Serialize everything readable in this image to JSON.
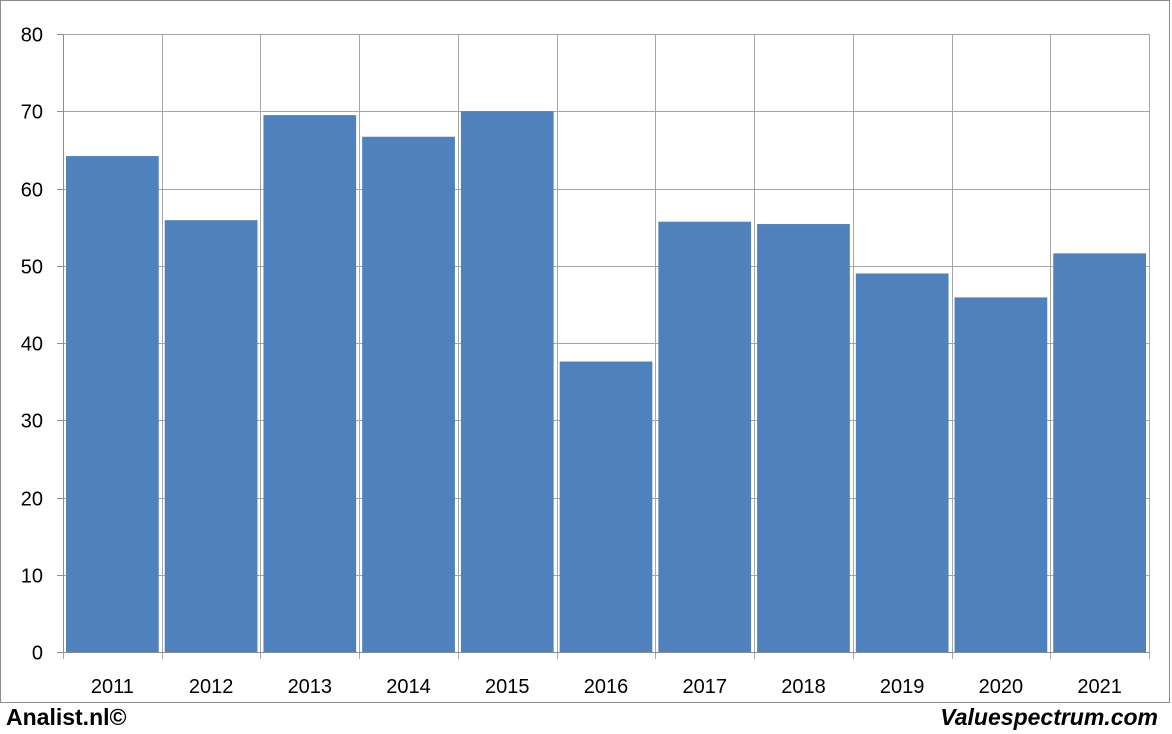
{
  "chart_data": {
    "type": "bar",
    "categories": [
      "2011",
      "2012",
      "2013",
      "2014",
      "2015",
      "2016",
      "2017",
      "2018",
      "2019",
      "2020",
      "2021"
    ],
    "values": [
      64.2,
      55.9,
      69.5,
      66.7,
      70.0,
      37.6,
      55.7,
      55.4,
      49.0,
      45.9,
      51.6
    ],
    "title": "",
    "xlabel": "",
    "ylabel": "",
    "ylim": [
      0,
      80
    ],
    "yticks": [
      "0",
      "10",
      "20",
      "30",
      "40",
      "50",
      "60",
      "70",
      "80"
    ],
    "grid": true,
    "bar_color": "#4f81bd",
    "grid_color": "#a6a6a6"
  },
  "footer": {
    "left_text": "Analist.nl©",
    "right_text": "Valuespectrum.com"
  }
}
